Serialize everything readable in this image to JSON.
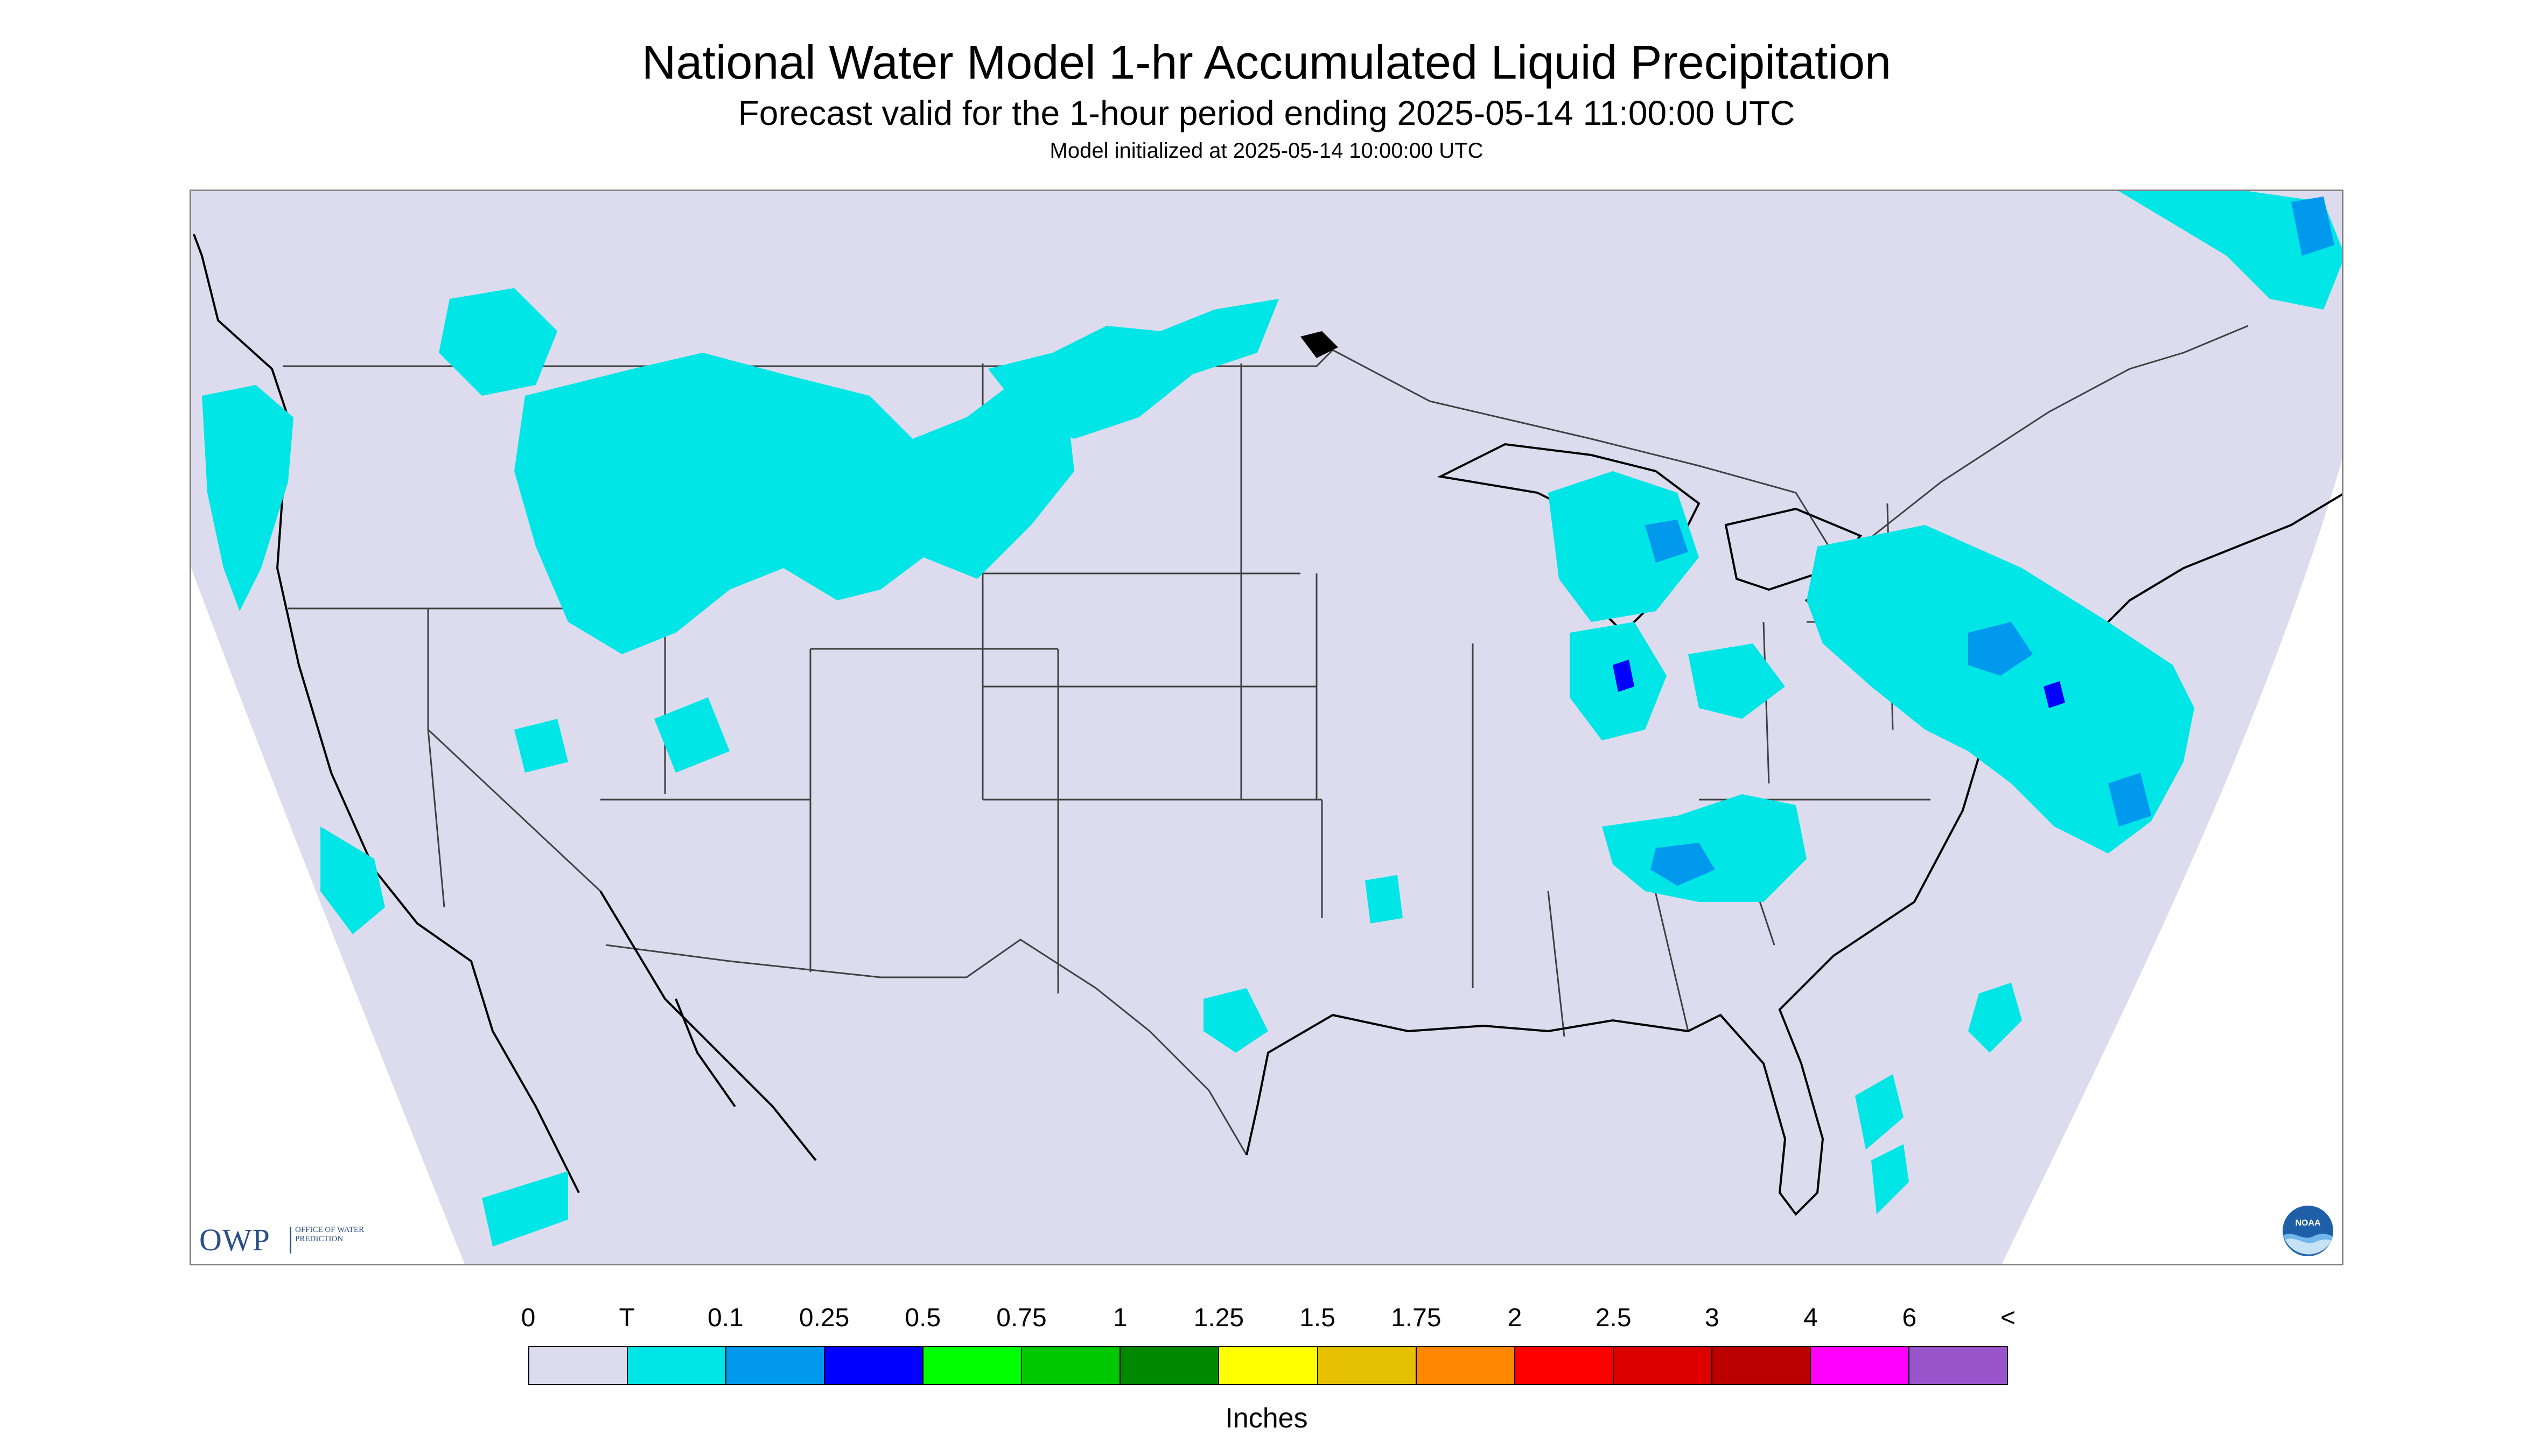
{
  "header": {
    "title": "National Water Model 1-hr Accumulated Liquid Precipitation",
    "subtitle": "Forecast valid for the 1-hour period ending 2025-05-14 11:00:00 UTC",
    "init_line": "Model initialized at 2025-05-14 10:00:00 UTC"
  },
  "logos": {
    "owp_text": "OWP",
    "owp_sub": "OFFICE OF WATER PREDICTION",
    "noaa_text": "NOAA"
  },
  "colors": {
    "domain_fill": "#dcdcee",
    "outside_fill": "#ffffff",
    "boundary": "#404040"
  },
  "legend": {
    "labels": [
      "0",
      "T",
      "0.1",
      "0.25",
      "0.5",
      "0.75",
      "1",
      "1.25",
      "1.5",
      "1.75",
      "2",
      "2.5",
      "3",
      "4",
      "6",
      "<"
    ],
    "colors": [
      "#dcdcee",
      "#00e5e5",
      "#0099ee",
      "#0000ff",
      "#00ff00",
      "#00c800",
      "#008800",
      "#ffff00",
      "#e5c000",
      "#ff8800",
      "#ff0000",
      "#dd0000",
      "#bb0000",
      "#ff00ff",
      "#9955cc"
    ],
    "units": "Inches"
  }
}
